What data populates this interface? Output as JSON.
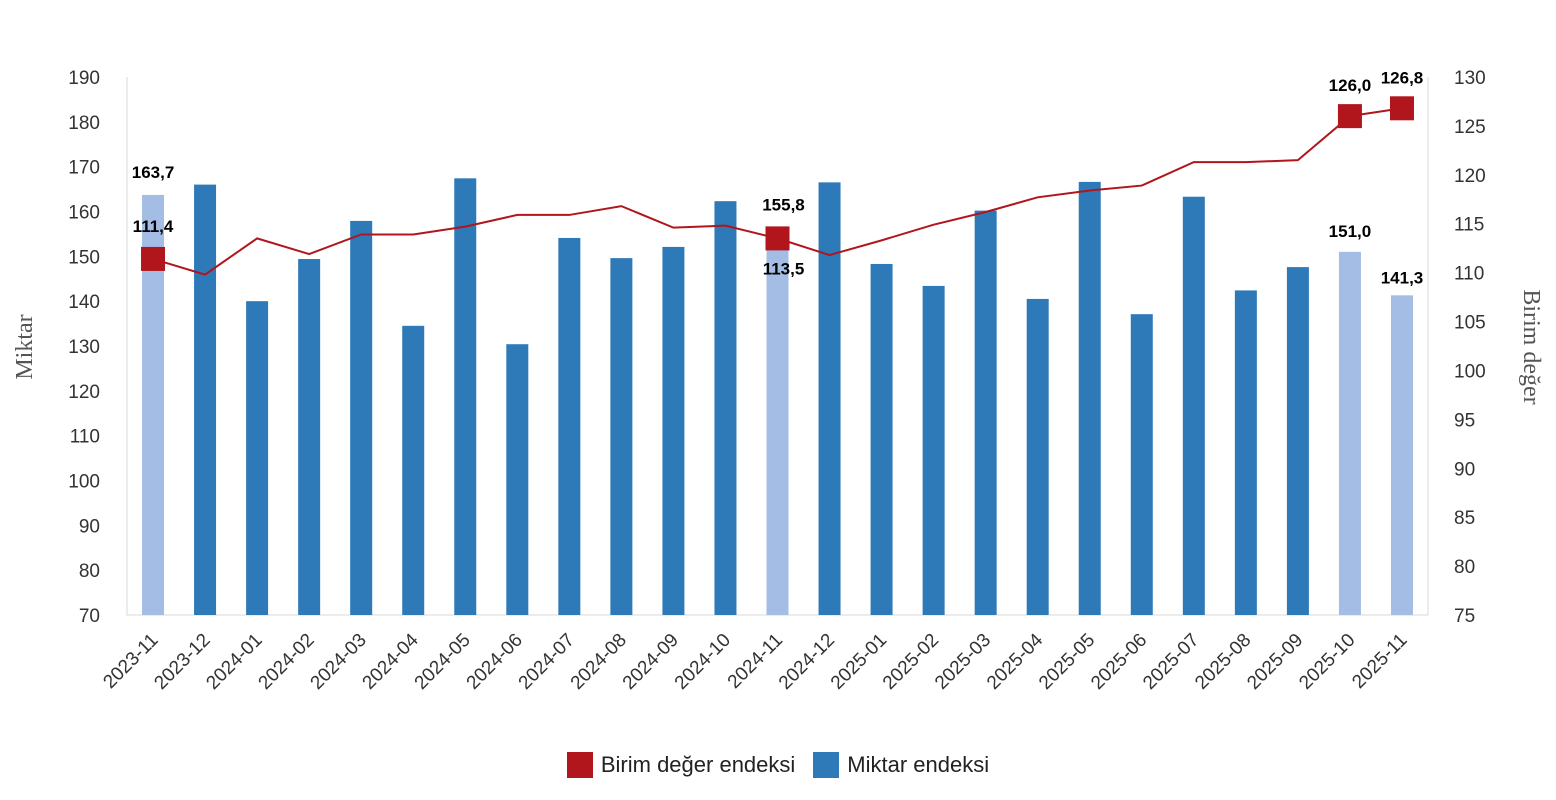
{
  "chart_data": {
    "type": "bar",
    "categories": [
      "2023-11",
      "2023-12",
      "2024-01",
      "2024-02",
      "2024-03",
      "2024-04",
      "2024-05",
      "2024-06",
      "2024-07",
      "2024-08",
      "2024-09",
      "2024-10",
      "2024-11",
      "2024-12",
      "2025-01",
      "2025-02",
      "2025-03",
      "2025-04",
      "2025-05",
      "2025-06",
      "2025-07",
      "2025-08",
      "2025-09",
      "2025-10",
      "2025-11"
    ],
    "y_left_label": "Miktar",
    "y_right_label": "Birim değer",
    "y_left_lim": [
      70,
      190
    ],
    "y_left_ticks": [
      "190",
      "180",
      "170",
      "160",
      "150",
      "140",
      "130",
      "120",
      "110",
      "100",
      "90",
      "80",
      "70"
    ],
    "y_right_lim": [
      75,
      130
    ],
    "y_right_ticks": [
      "130",
      "125",
      "120",
      "115",
      "110",
      "105",
      "100",
      "95",
      "90",
      "85",
      "80",
      "75"
    ],
    "series": [
      {
        "name": "Miktar endeksi",
        "type": "bar",
        "axis": "left",
        "color": "#2e7ab8",
        "highlight_color": "#a4bde4",
        "highlight_indices": [
          0,
          12,
          23,
          24
        ],
        "values": [
          163.7,
          166.0,
          140.0,
          149.4,
          157.9,
          134.5,
          167.4,
          130.4,
          154.1,
          149.6,
          152.1,
          162.3,
          155.8,
          166.5,
          148.3,
          143.4,
          160.2,
          140.5,
          166.6,
          137.1,
          163.3,
          142.4,
          147.6,
          151.0,
          141.3
        ]
      },
      {
        "name": "Birim değer endeksi",
        "type": "line",
        "axis": "right",
        "color": "#b0161c",
        "marker_indices": [
          0,
          12,
          23,
          24
        ],
        "values": [
          111.4,
          109.8,
          113.5,
          111.9,
          113.9,
          113.9,
          114.7,
          115.9,
          115.9,
          116.8,
          114.6,
          114.8,
          113.5,
          111.8,
          113.3,
          114.9,
          116.2,
          117.7,
          118.4,
          118.9,
          121.3,
          121.3,
          121.5,
          126.0,
          126.8
        ]
      }
    ],
    "data_labels": [
      {
        "series": 0,
        "index": 0,
        "text": "163,7"
      },
      {
        "series": 1,
        "index": 0,
        "text": "111,4"
      },
      {
        "series": 0,
        "index": 12,
        "text": "155,8"
      },
      {
        "series": 1,
        "index": 12,
        "text": "113,5"
      },
      {
        "series": 0,
        "index": 23,
        "text": "151,0"
      },
      {
        "series": 1,
        "index": 23,
        "text": "126,0"
      },
      {
        "series": 0,
        "index": 24,
        "text": "141,3"
      },
      {
        "series": 1,
        "index": 24,
        "text": "126,8"
      }
    ],
    "legend": {
      "position": "bottom",
      "items": [
        {
          "label": "Birim değer endeksi",
          "color": "#b0161c"
        },
        {
          "label": "Miktar endeksi",
          "color": "#2e7ab8"
        }
      ]
    }
  }
}
